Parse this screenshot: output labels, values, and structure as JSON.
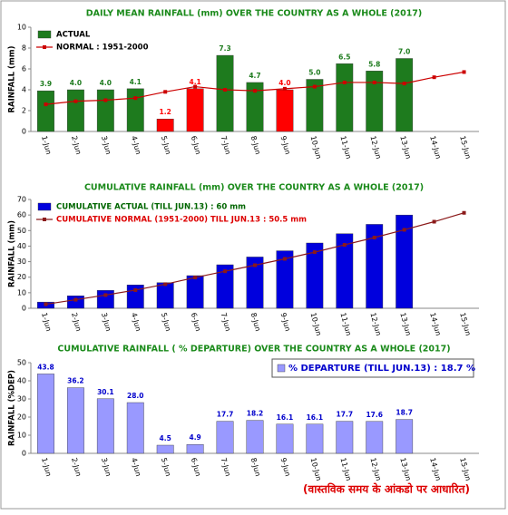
{
  "chart_data": [
    {
      "type": "bar",
      "title": "DAILY MEAN RAINFALL (mm) OVER THE COUNTRY AS A WHOLE  (2017)",
      "y_label": "RAINFALL (mm)",
      "legend": "upper left",
      "categories": [
        "1-Jun",
        "2-Jun",
        "3-Jun",
        "4-Jun",
        "5-Jun",
        "6-Jun",
        "7-Jun",
        "8-Jun",
        "9-Jun",
        "10-Jun",
        "11-Jun",
        "12-Jun",
        "13-Jun",
        "14-Jun",
        "15-Jun"
      ],
      "ylim": [
        0,
        10
      ],
      "yticks": [
        0,
        2,
        4,
        6,
        8,
        10
      ],
      "series": [
        {
          "name": "ACTUAL",
          "type": "bar",
          "color": "#1e7b1e",
          "colors": [
            "#1e7b1e",
            "#1e7b1e",
            "#1e7b1e",
            "#1e7b1e",
            "#ff0000",
            "#ff0000",
            "#1e7b1e",
            "#1e7b1e",
            "#ff0000",
            "#1e7b1e",
            "#1e7b1e",
            "#1e7b1e",
            "#1e7b1e",
            null,
            null
          ],
          "values": [
            3.9,
            4.0,
            4.0,
            4.1,
            1.2,
            4.1,
            7.3,
            4.7,
            4.0,
            5.0,
            6.5,
            5.8,
            7.0,
            null,
            null
          ],
          "value_labels": [
            "3.9",
            "4.0",
            "4.0",
            "4.1",
            "1.2",
            "4.1",
            "7.3",
            "4.7",
            "4.0",
            "5.0",
            "6.5",
            "5.8",
            "7.0",
            null,
            null
          ]
        },
        {
          "name": "NORMAL : 1951-2000",
          "type": "line",
          "color": "#cc0000",
          "values": [
            2.6,
            2.9,
            3.0,
            3.2,
            3.8,
            4.3,
            4.0,
            3.9,
            4.1,
            4.3,
            4.7,
            4.7,
            4.6,
            5.2,
            5.7
          ]
        }
      ]
    },
    {
      "type": "bar",
      "title": "CUMULATIVE RAINFALL (mm) OVER THE COUNTRY AS A WHOLE  (2017)",
      "y_label": "RAINFALL (mm)",
      "legend": "upper left",
      "categories": [
        "1-Jun",
        "2-Jun",
        "3-Jun",
        "4-Jun",
        "5-Jun",
        "6-Jun",
        "7-Jun",
        "8-Jun",
        "9-Jun",
        "10-Jun",
        "11-Jun",
        "12-Jun",
        "13-Jun",
        "14-Jun",
        "15-Jun"
      ],
      "ylim": [
        0,
        70
      ],
      "yticks": [
        0,
        10,
        20,
        30,
        40,
        50,
        60,
        70
      ],
      "series": [
        {
          "name": "CUMULATIVE ACTUAL (TILL JUN.13) : 60 mm",
          "type": "bar",
          "color": "#0000dd",
          "label_color": "#006600",
          "values": [
            4,
            8,
            11.5,
            15,
            16.5,
            21,
            28,
            33,
            37,
            42,
            48,
            54,
            60,
            null,
            null
          ]
        },
        {
          "name": "CUMULATIVE NORMAL (1951-2000) TILL JUN.13 : 50.5 mm",
          "type": "line",
          "color": "#8b1a1a",
          "label_color": "#dd0000",
          "values": [
            2.6,
            5.5,
            8.5,
            11.7,
            15.5,
            19.8,
            23.8,
            27.7,
            31.8,
            36.1,
            40.8,
            45.5,
            50.5,
            55.7,
            61.4
          ]
        }
      ]
    },
    {
      "type": "bar",
      "title": "CUMULATIVE RAINFALL ( % DEPARTURE) OVER THE COUNTRY AS A WHOLE (2017)",
      "y_label": "RAINFALL (%DEP)",
      "legend": "upper right",
      "categories": [
        "1-Jun",
        "2-Jun",
        "3-Jun",
        "4-Jun",
        "5-Jun",
        "6-Jun",
        "7-Jun",
        "8-Jun",
        "9-Jun",
        "10-Jun",
        "11-Jun",
        "12-Jun",
        "13-Jun",
        "14-Jun",
        "15-Jun"
      ],
      "ylim": [
        0,
        50
      ],
      "yticks": [
        0,
        10,
        20,
        30,
        40,
        50
      ],
      "footnote": "(वास्तविक समय के आंकडो पर आधारित)",
      "series": [
        {
          "name": "% DEPARTURE (TILL JUN.13) : 18.7 %",
          "type": "bar",
          "color": "#9999ff",
          "label_color": "#0000cc",
          "values": [
            43.8,
            36.2,
            30.1,
            28.0,
            4.5,
            4.9,
            17.7,
            18.2,
            16.1,
            16.1,
            17.7,
            17.6,
            18.7,
            null,
            null
          ],
          "value_labels": [
            "43.8",
            "36.2",
            "30.1",
            "28.0",
            "4.5",
            "4.9",
            "17.7",
            "18.2",
            "16.1",
            "16.1",
            "17.7",
            "17.6",
            "18.7",
            null,
            null
          ]
        }
      ]
    }
  ]
}
